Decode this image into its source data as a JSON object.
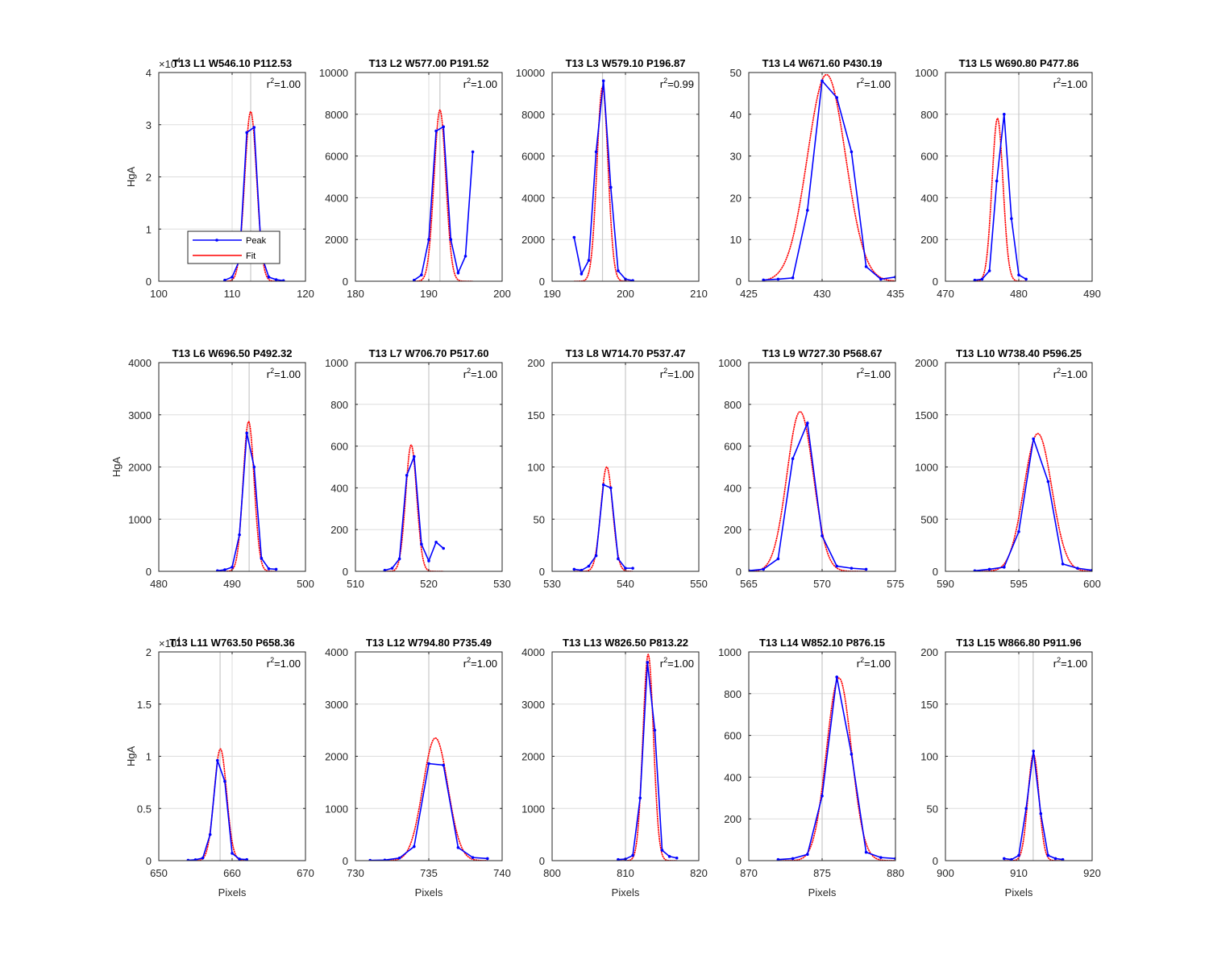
{
  "figure": {
    "background": "#ffffff"
  },
  "colors": {
    "peak": "#0000ff",
    "fit": "#ff0000",
    "grid": "#dddddd",
    "axis": "#262626",
    "marker": "#c8c8c8"
  },
  "legend": {
    "peak_label": "Peak",
    "fit_label": "Fit",
    "panel_index": 0,
    "placement": "lower-left"
  },
  "chart_data": [
    {
      "type": "line",
      "title": "T13 L1 W546.10 P112.53",
      "xlabel": "",
      "ylabel": "HgA",
      "xlim": [
        100,
        120
      ],
      "ylim": [
        0,
        40000
      ],
      "xticks": [
        100,
        110,
        120
      ],
      "yticks": [
        0,
        10000,
        20000,
        30000,
        40000
      ],
      "ytick_labels": [
        "0",
        "1",
        "2",
        "3",
        "4"
      ],
      "yexponent": "4",
      "grid": true,
      "marker_x": 112.53,
      "r2": "1.00",
      "fit": {
        "amp": 32500,
        "center": 112.53,
        "sigma": 0.82
      },
      "series": [
        {
          "name": "Peak",
          "x": [
            109,
            110,
            111,
            112,
            113,
            114,
            115,
            116,
            117
          ],
          "y": [
            200,
            800,
            4000,
            28500,
            29500,
            5000,
            800,
            300,
            100
          ]
        }
      ]
    },
    {
      "type": "line",
      "title": "T13 L2 W577.00 P191.52",
      "xlabel": "",
      "ylabel": "",
      "xlim": [
        180,
        200
      ],
      "ylim": [
        0,
        10000
      ],
      "xticks": [
        180,
        190,
        200
      ],
      "yticks": [
        0,
        2000,
        4000,
        6000,
        8000,
        10000
      ],
      "ytick_labels": [
        "0",
        "2000",
        "4000",
        "6000",
        "8000",
        "10000"
      ],
      "grid": true,
      "marker_x": 191.52,
      "r2": "1.00",
      "fit": {
        "amp": 8200,
        "center": 191.52,
        "sigma": 0.8
      },
      "series": [
        {
          "name": "Peak",
          "x": [
            188,
            189,
            190,
            191,
            192,
            193,
            194,
            195,
            196
          ],
          "y": [
            50,
            300,
            2000,
            7200,
            7400,
            2000,
            400,
            1200,
            6200
          ]
        }
      ]
    },
    {
      "type": "line",
      "title": "T13 L3 W579.10 P196.87",
      "xlabel": "",
      "ylabel": "",
      "xlim": [
        190,
        210
      ],
      "ylim": [
        0,
        10000
      ],
      "xticks": [
        190,
        200,
        210
      ],
      "yticks": [
        0,
        2000,
        4000,
        6000,
        8000,
        10000
      ],
      "ytick_labels": [
        "0",
        "2000",
        "4000",
        "6000",
        "8000",
        "10000"
      ],
      "grid": true,
      "marker_x": 196.87,
      "r2": "0.99",
      "fit": {
        "amp": 9300,
        "center": 196.87,
        "sigma": 0.75
      },
      "series": [
        {
          "name": "Peak",
          "x": [
            193,
            194,
            195,
            196,
            197,
            198,
            199,
            200,
            201
          ],
          "y": [
            2100,
            350,
            1000,
            6200,
            9600,
            4500,
            500,
            100,
            30
          ]
        }
      ]
    },
    {
      "type": "line",
      "title": "T13 L4 W671.60 P430.19",
      "xlabel": "",
      "ylabel": "",
      "xlim": [
        425,
        435
      ],
      "ylim": [
        0,
        50
      ],
      "xticks": [
        425,
        430,
        435
      ],
      "yticks": [
        0,
        10,
        20,
        30,
        40,
        50
      ],
      "ytick_labels": [
        "0",
        "10",
        "20",
        "30",
        "40",
        "50"
      ],
      "grid": true,
      "marker_x": 430.0,
      "r2": "1.00",
      "fit": {
        "amp": 49.5,
        "center": 430.3,
        "sigma": 1.3
      },
      "series": [
        {
          "name": "Peak",
          "x": [
            426,
            427,
            428,
            429,
            430,
            431,
            432,
            433,
            434,
            435
          ],
          "y": [
            0.3,
            0.5,
            0.8,
            17,
            48,
            44,
            31,
            3.5,
            0.5,
            1
          ]
        }
      ]
    },
    {
      "type": "line",
      "title": "T13 L5 W690.80 P477.86",
      "xlabel": "",
      "ylabel": "",
      "xlim": [
        470,
        490
      ],
      "ylim": [
        0,
        1000
      ],
      "xticks": [
        470,
        480,
        490
      ],
      "yticks": [
        0,
        200,
        400,
        600,
        800,
        1000
      ],
      "ytick_labels": [
        "0",
        "200",
        "400",
        "600",
        "800",
        "1000"
      ],
      "grid": true,
      "marker_x": 480.0,
      "r2": "1.00",
      "fit": {
        "amp": 780,
        "center": 477.1,
        "sigma": 0.75
      },
      "series": [
        {
          "name": "Peak",
          "x": [
            474,
            475,
            476,
            477,
            478,
            479,
            480,
            481
          ],
          "y": [
            5,
            10,
            50,
            480,
            800,
            300,
            30,
            10
          ]
        }
      ]
    },
    {
      "type": "line",
      "title": "T13 L6 W696.50 P492.32",
      "xlabel": "",
      "ylabel": "HgA",
      "xlim": [
        480,
        500
      ],
      "ylim": [
        0,
        4000
      ],
      "xticks": [
        480,
        490,
        500
      ],
      "yticks": [
        0,
        1000,
        2000,
        3000,
        4000
      ],
      "ytick_labels": [
        "0",
        "1000",
        "2000",
        "3000",
        "4000"
      ],
      "grid": true,
      "marker_x": 492.32,
      "r2": "1.00",
      "fit": {
        "amp": 2870,
        "center": 492.25,
        "sigma": 0.75
      },
      "series": [
        {
          "name": "Peak",
          "x": [
            488,
            489,
            490,
            491,
            492,
            493,
            494,
            495,
            496
          ],
          "y": [
            10,
            30,
            80,
            700,
            2650,
            2000,
            250,
            50,
            40
          ]
        }
      ]
    },
    {
      "type": "line",
      "title": "T13 L7 W706.70 P517.60",
      "xlabel": "",
      "ylabel": "",
      "xlim": [
        510,
        530
      ],
      "ylim": [
        0,
        1000
      ],
      "xticks": [
        510,
        520,
        530
      ],
      "yticks": [
        0,
        200,
        400,
        600,
        800,
        1000
      ],
      "ytick_labels": [
        "0",
        "200",
        "400",
        "600",
        "800",
        "1000"
      ],
      "grid": true,
      "marker_x": 520.0,
      "r2": "1.00",
      "fit": {
        "amp": 605,
        "center": 517.6,
        "sigma": 0.75
      },
      "series": [
        {
          "name": "Peak",
          "x": [
            514,
            515,
            516,
            517,
            518,
            519,
            520,
            521,
            522
          ],
          "y": [
            5,
            15,
            60,
            460,
            550,
            130,
            50,
            140,
            110
          ]
        }
      ]
    },
    {
      "type": "line",
      "title": "T13 L8 W714.70 P537.47",
      "xlabel": "",
      "ylabel": "",
      "xlim": [
        530,
        550
      ],
      "ylim": [
        0,
        200
      ],
      "xticks": [
        530,
        540,
        550
      ],
      "yticks": [
        0,
        50,
        100,
        150,
        200
      ],
      "ytick_labels": [
        "0",
        "50",
        "100",
        "150",
        "200"
      ],
      "grid": true,
      "marker_x": 540.0,
      "r2": "1.00",
      "fit": {
        "amp": 100,
        "center": 537.45,
        "sigma": 0.8
      },
      "series": [
        {
          "name": "Peak",
          "x": [
            533,
            534,
            535,
            536,
            537,
            538,
            539,
            540,
            541
          ],
          "y": [
            2,
            1,
            5,
            15,
            83,
            80,
            12,
            3,
            3
          ]
        }
      ]
    },
    {
      "type": "line",
      "title": "T13 L9 W727.30 P568.67",
      "xlabel": "",
      "ylabel": "",
      "xlim": [
        565,
        575
      ],
      "ylim": [
        0,
        1000
      ],
      "xticks": [
        565,
        570,
        575
      ],
      "yticks": [
        0,
        200,
        400,
        600,
        800,
        1000
      ],
      "ytick_labels": [
        "0",
        "200",
        "400",
        "600",
        "800",
        "1000"
      ],
      "grid": true,
      "marker_x": 570.0,
      "r2": "1.00",
      "fit": {
        "amp": 765,
        "center": 568.5,
        "sigma": 0.9
      },
      "series": [
        {
          "name": "Peak",
          "x": [
            565,
            566,
            567,
            568,
            569,
            570,
            571,
            572,
            573
          ],
          "y": [
            3,
            10,
            60,
            540,
            710,
            170,
            25,
            15,
            10
          ]
        }
      ]
    },
    {
      "type": "line",
      "title": "T13 L10 W738.40 P596.25",
      "xlabel": "",
      "ylabel": "",
      "xlim": [
        590,
        600
      ],
      "ylim": [
        0,
        2000
      ],
      "xticks": [
        590,
        595,
        600
      ],
      "yticks": [
        0,
        500,
        1000,
        1500,
        2000
      ],
      "ytick_labels": [
        "0",
        "500",
        "1000",
        "1500",
        "2000"
      ],
      "grid": true,
      "marker_x": 595.0,
      "r2": "1.00",
      "fit": {
        "amp": 1320,
        "center": 596.3,
        "sigma": 0.95
      },
      "series": [
        {
          "name": "Peak",
          "x": [
            592,
            593,
            594,
            595,
            596,
            597,
            598,
            599,
            600
          ],
          "y": [
            5,
            20,
            40,
            380,
            1270,
            860,
            70,
            30,
            10
          ]
        }
      ]
    },
    {
      "type": "line",
      "title": "T13 L11 W763.50 P658.36",
      "xlabel": "Pixels",
      "ylabel": "HgA",
      "xlim": [
        650,
        670
      ],
      "ylim": [
        0,
        20000
      ],
      "xticks": [
        650,
        660,
        670
      ],
      "yticks": [
        0,
        5000,
        10000,
        15000,
        20000
      ],
      "ytick_labels": [
        "0",
        "0.5",
        "1",
        "1.5",
        "2"
      ],
      "yexponent": "4",
      "grid": true,
      "marker_x": 658.36,
      "r2": "1.00",
      "fit": {
        "amp": 10700,
        "center": 658.4,
        "sigma": 0.85
      },
      "series": [
        {
          "name": "Peak",
          "x": [
            654,
            655,
            656,
            657,
            658,
            659,
            660,
            661,
            662
          ],
          "y": [
            30,
            80,
            250,
            2500,
            9600,
            7600,
            700,
            150,
            100
          ]
        }
      ]
    },
    {
      "type": "line",
      "title": "T13 L12 W794.80 P735.49",
      "xlabel": "Pixels",
      "ylabel": "",
      "xlim": [
        730,
        740
      ],
      "ylim": [
        0,
        4000
      ],
      "xticks": [
        730,
        735,
        740
      ],
      "yticks": [
        0,
        1000,
        2000,
        3000,
        4000
      ],
      "ytick_labels": [
        "0",
        "1000",
        "2000",
        "3000",
        "4000"
      ],
      "grid": true,
      "marker_x": 735.0,
      "r2": "1.00",
      "fit": {
        "amp": 2350,
        "center": 735.45,
        "sigma": 0.85
      },
      "series": [
        {
          "name": "Peak",
          "x": [
            731,
            732,
            733,
            734,
            735,
            736,
            737,
            738,
            739
          ],
          "y": [
            5,
            10,
            50,
            270,
            1860,
            1830,
            250,
            60,
            40
          ]
        }
      ]
    },
    {
      "type": "line",
      "title": "T13 L13 W826.50 P813.22",
      "xlabel": "Pixels",
      "ylabel": "",
      "xlim": [
        800,
        820
      ],
      "ylim": [
        0,
        4000
      ],
      "xticks": [
        800,
        810,
        820
      ],
      "yticks": [
        0,
        1000,
        2000,
        3000,
        4000
      ],
      "ytick_labels": [
        "0",
        "1000",
        "2000",
        "3000",
        "4000"
      ],
      "grid": true,
      "marker_x": 810.0,
      "r2": "1.00",
      "fit": {
        "amp": 3950,
        "center": 813.1,
        "sigma": 0.72
      },
      "series": [
        {
          "name": "Peak",
          "x": [
            809,
            810,
            811,
            812,
            813,
            814,
            815,
            816,
            817
          ],
          "y": [
            20,
            30,
            100,
            1200,
            3800,
            2500,
            200,
            80,
            50
          ]
        }
      ]
    },
    {
      "type": "line",
      "title": "T13 L14 W852.10 P876.15",
      "xlabel": "Pixels",
      "ylabel": "",
      "xlim": [
        870,
        880
      ],
      "ylim": [
        0,
        1000
      ],
      "xticks": [
        870,
        875,
        880
      ],
      "yticks": [
        0,
        200,
        400,
        600,
        800,
        1000
      ],
      "ytick_labels": [
        "0",
        "200",
        "400",
        "600",
        "800",
        "1000"
      ],
      "grid": true,
      "marker_x": 875.0,
      "r2": "1.00",
      "fit": {
        "amp": 875,
        "center": 876.15,
        "sigma": 0.85
      },
      "series": [
        {
          "name": "Peak",
          "x": [
            872,
            873,
            874,
            875,
            876,
            877,
            878,
            879,
            880
          ],
          "y": [
            5,
            10,
            30,
            310,
            880,
            510,
            40,
            15,
            10
          ]
        }
      ]
    },
    {
      "type": "line",
      "title": "T13 L15 W866.80 P911.96",
      "xlabel": "Pixels",
      "ylabel": "",
      "xlim": [
        900,
        920
      ],
      "ylim": [
        0,
        200
      ],
      "xticks": [
        900,
        910,
        920
      ],
      "yticks": [
        0,
        50,
        100,
        150,
        200
      ],
      "ytick_labels": [
        "0",
        "50",
        "100",
        "150",
        "200"
      ],
      "grid": true,
      "marker_x": 911.96,
      "r2": "1.00",
      "fit": {
        "amp": 102,
        "center": 912.0,
        "sigma": 0.75
      },
      "series": [
        {
          "name": "Peak",
          "x": [
            908,
            909,
            910,
            911,
            912,
            913,
            914,
            915,
            916
          ],
          "y": [
            2,
            1,
            5,
            50,
            105,
            45,
            5,
            2,
            1
          ]
        }
      ]
    }
  ]
}
